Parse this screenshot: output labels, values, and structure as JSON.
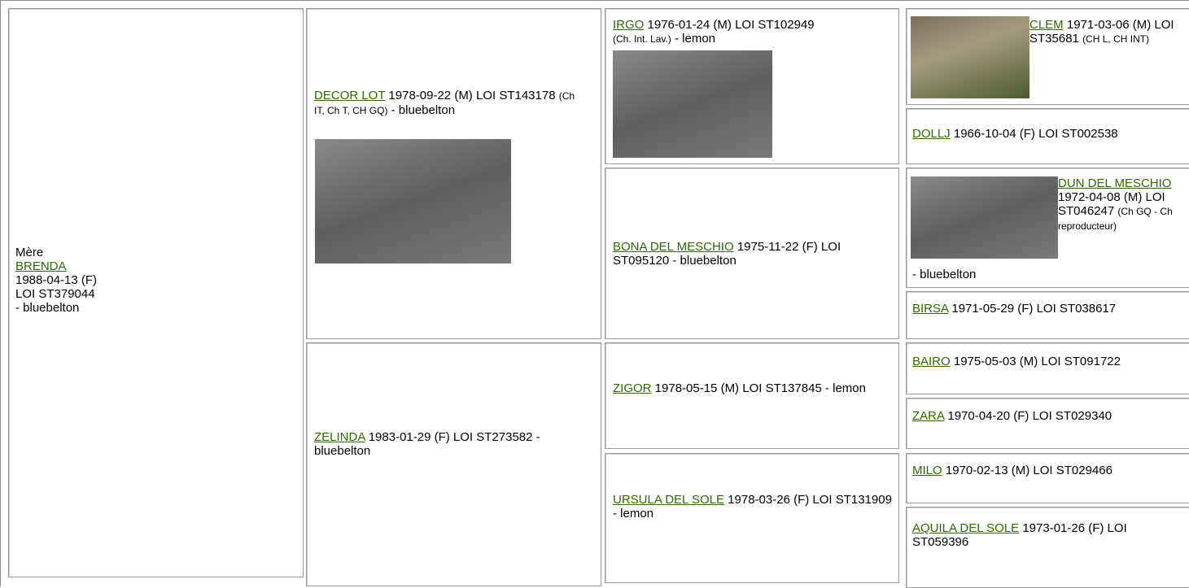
{
  "pedigree": {
    "mother": {
      "role": "Mère",
      "name": "BRENDA",
      "birth": "1988-04-13 (F)",
      "loi": "LOI ST379044",
      "color": "- bluebelton"
    },
    "parents": [
      {
        "name": "DECOR LOT",
        "info": "1978-09-22 (M) LOI ST143178",
        "titles": "(Ch IT, Ch T, CH GQ)",
        "color": "- bluebelton"
      },
      {
        "name": "ZELINDA",
        "info": "1983-01-29 (F) LOI ST273582 - bluebelton"
      }
    ],
    "grandparents": [
      {
        "name": "IRGO",
        "info": "1976-01-24 (M) LOI ST102949",
        "titles": "(Ch. Int. Lav.)",
        "color": "- lemon"
      },
      {
        "name": "BONA DEL MESCHIO",
        "info": "1975-11-22 (F) LOI ST095120 - bluebelton"
      },
      {
        "name": "ZIGOR",
        "info": "1978-05-15 (M) LOI ST137845 - lemon"
      },
      {
        "name": "URSULA DEL SOLE",
        "info": "1978-03-26 (F) LOI ST131909 - lemon"
      }
    ],
    "great_grandparents": [
      {
        "name": "CLEM",
        "info": "1971-03-06 (M) LOI ST35681",
        "titles": "(CH L, CH INT)"
      },
      {
        "name": "DOLLJ",
        "info": "1966-10-04 (F) LOI ST002538"
      },
      {
        "name": "DUN DEL MESCHIO",
        "info": "1972-04-08 (M) LOI ST046247",
        "titles": "(Ch GQ - Ch reproducteur)",
        "color": "- bluebelton"
      },
      {
        "name": "BIRSA",
        "info": "1971-05-29 (F) LOI ST038617"
      },
      {
        "name": "BAIRO",
        "info": "1975-05-03 (M) LOI ST091722"
      },
      {
        "name": "ZARA",
        "info": "1970-04-20 (F) LOI ST029340"
      },
      {
        "name": "MILO",
        "info": "1970-02-13 (M) LOI ST029466"
      },
      {
        "name": "AQUILA DEL SOLE",
        "info": "1973-01-26 (F) LOI ST059396"
      }
    ]
  }
}
